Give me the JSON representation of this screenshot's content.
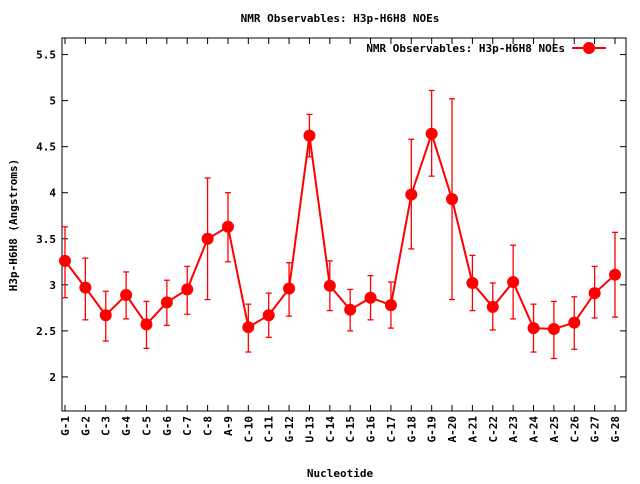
{
  "chart_data": {
    "type": "line",
    "title": "NMR Observables: H3p-H6H8 NOEs",
    "xlabel": "Nucleotide",
    "ylabel": "H3p-H6H8 (Angstroms)",
    "ylim": [
      1.63,
      5.68
    ],
    "yticks": [
      "2",
      "2.5",
      "3",
      "3.5",
      "4",
      "4.5",
      "5",
      "5.5"
    ],
    "grid": false,
    "legend_position": "top-right",
    "color": "#ff0000",
    "categories": [
      "G-1",
      "G-2",
      "C-3",
      "G-4",
      "C-5",
      "G-6",
      "C-7",
      "C-8",
      "A-9",
      "C-10",
      "C-11",
      "G-12",
      "U-13",
      "C-14",
      "C-15",
      "G-16",
      "C-17",
      "G-18",
      "G-19",
      "A-20",
      "A-21",
      "C-22",
      "A-23",
      "A-24",
      "A-25",
      "C-26",
      "G-27",
      "G-28"
    ],
    "series": [
      {
        "name": "NMR Observables: H3p-H6H8 NOEs",
        "values": [
          3.26,
          2.97,
          2.67,
          2.89,
          2.57,
          2.81,
          2.95,
          3.5,
          3.63,
          2.54,
          2.67,
          2.96,
          4.62,
          2.99,
          2.73,
          2.86,
          2.78,
          3.98,
          4.64,
          3.93,
          3.02,
          2.76,
          3.03,
          2.53,
          2.52,
          2.59,
          2.91,
          3.11
        ],
        "err_low": [
          2.86,
          2.62,
          2.39,
          2.63,
          2.31,
          2.56,
          2.68,
          2.84,
          3.25,
          2.27,
          2.43,
          2.66,
          4.39,
          2.72,
          2.5,
          2.62,
          2.53,
          3.39,
          4.18,
          2.84,
          2.72,
          2.51,
          2.63,
          2.27,
          2.2,
          2.3,
          2.64,
          2.65
        ],
        "err_high": [
          3.63,
          3.29,
          2.93,
          3.14,
          2.82,
          3.05,
          3.2,
          4.16,
          4.0,
          2.79,
          2.91,
          3.24,
          4.85,
          3.26,
          2.95,
          3.1,
          3.03,
          4.58,
          5.11,
          5.02,
          3.32,
          3.02,
          3.43,
          2.79,
          2.82,
          2.87,
          3.2,
          3.57
        ]
      }
    ]
  }
}
